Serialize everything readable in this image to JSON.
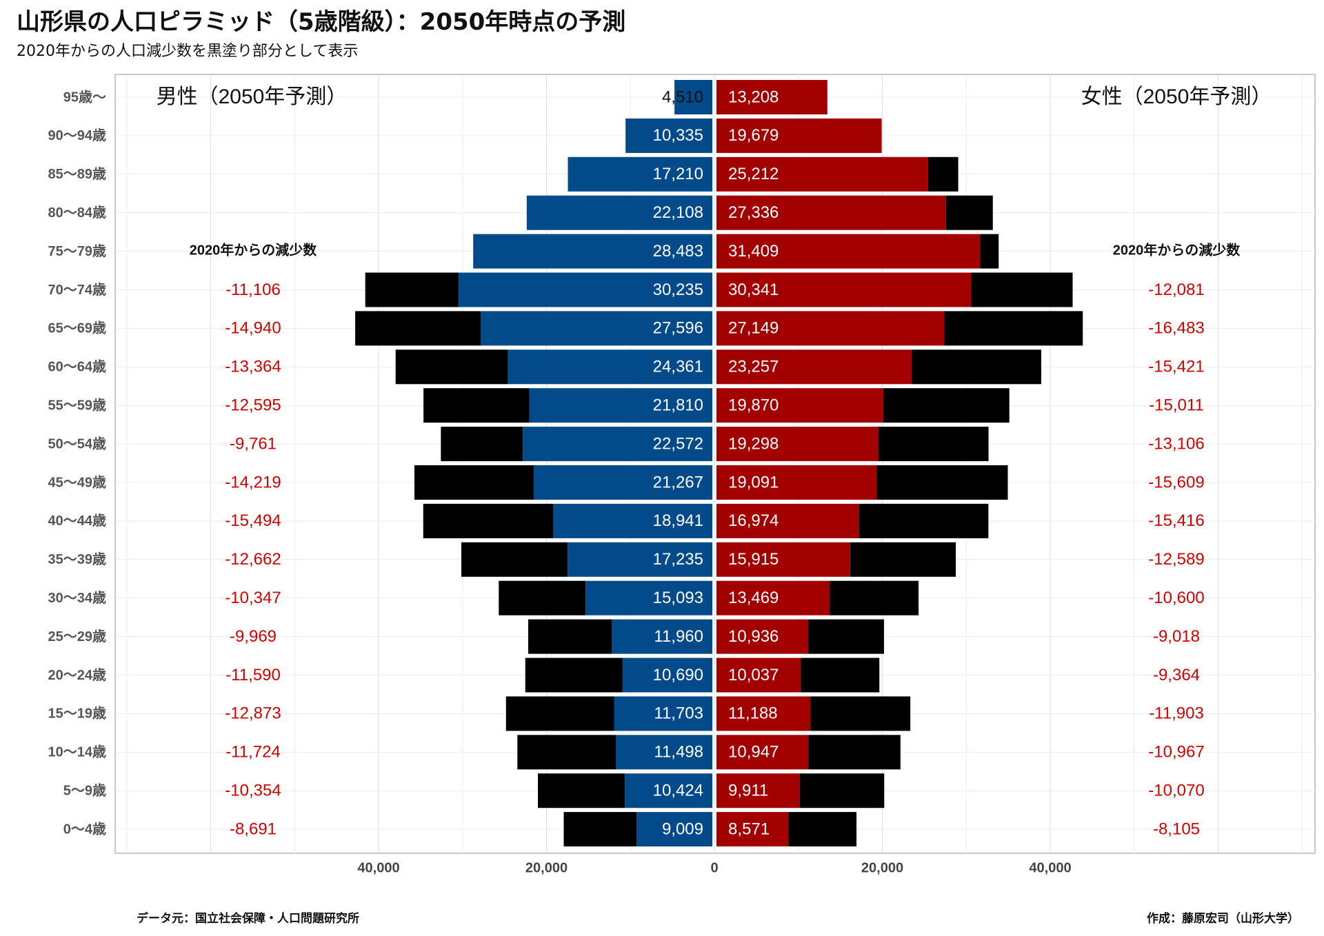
{
  "title": "山形県の人口ピラミッド（5歳階級）：2050年時点の予測",
  "subtitle": "2020年からの人口減少数を黒塗り部分として表示",
  "source": "データ元：国立社会保障・人口問題研究所",
  "author": "作成：藤原宏司（山形大学）",
  "colors": {
    "male": "#034a8a",
    "female": "#a30000",
    "decrease": "#000000",
    "decrease_text": "#d40000"
  },
  "chart_data": {
    "type": "bar",
    "orientation": "horizontal-pyramid",
    "male_label": "男性（2050年予測）",
    "female_label": "女性（2050年予測）",
    "decrease_label_left": "2020年からの減少数",
    "decrease_label_right": "2020年からの減少数",
    "categories": [
      "95歳～",
      "90～94歳",
      "85～89歳",
      "80～84歳",
      "75～79歳",
      "70～74歳",
      "65～69歳",
      "60～64歳",
      "55～59歳",
      "50～54歳",
      "45～49歳",
      "40～44歳",
      "35～39歳",
      "30～34歳",
      "25～29歳",
      "20～24歳",
      "15～19歳",
      "10～14歳",
      "5～9歳",
      "0～4歳"
    ],
    "male_2050": [
      4510,
      10335,
      17210,
      22108,
      28483,
      30235,
      27596,
      24361,
      21810,
      22572,
      21267,
      18941,
      17235,
      15093,
      11960,
      10690,
      11703,
      11498,
      10424,
      9009
    ],
    "female_2050": [
      13208,
      19679,
      25212,
      27336,
      31409,
      30341,
      27149,
      23257,
      19870,
      19298,
      19091,
      16974,
      15915,
      13469,
      10936,
      10037,
      11188,
      10947,
      9911,
      8571
    ],
    "male_decrease_bar": [
      0,
      0,
      0,
      0,
      0,
      11106,
      14940,
      13364,
      12595,
      9761,
      14219,
      15494,
      12662,
      10347,
      9969,
      11590,
      12873,
      11724,
      10354,
      8691
    ],
    "female_decrease_bar": [
      0,
      0,
      3580,
      5580,
      2200,
      12081,
      16483,
      15421,
      15011,
      13106,
      15609,
      15416,
      12589,
      10600,
      9018,
      9364,
      11903,
      10967,
      10070,
      8105
    ],
    "male_decrease_labels": [
      "",
      "",
      "",
      "",
      "",
      "-11,106",
      "-14,940",
      "-13,364",
      "-12,595",
      "-9,761",
      "-14,219",
      "-15,494",
      "-12,662",
      "-10,347",
      "-9,969",
      "-11,590",
      "-12,873",
      "-11,724",
      "-10,354",
      "-8,691"
    ],
    "female_decrease_labels": [
      "",
      "",
      "",
      "",
      "",
      "-12,081",
      "-16,483",
      "-15,421",
      "-15,011",
      "-13,106",
      "-15,609",
      "-15,416",
      "-12,589",
      "-10,600",
      "-9,018",
      "-9,364",
      "-11,903",
      "-10,967",
      "-10,070",
      "-8,105"
    ],
    "x_ticks": [
      "40,000",
      "20,000",
      "0",
      "20,000",
      "40,000"
    ],
    "x_tick_values": [
      -40000,
      -20000,
      0,
      20000,
      40000
    ],
    "xlim": [
      -71500,
      71500
    ],
    "grid": true
  }
}
